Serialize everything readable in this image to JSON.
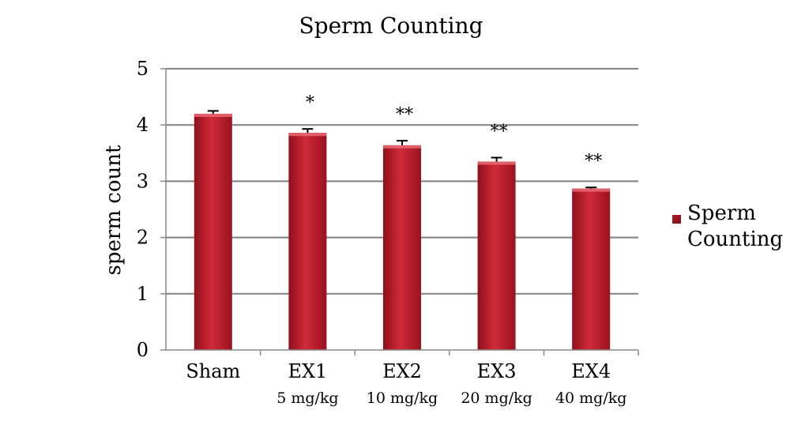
{
  "chart_data": {
    "type": "bar",
    "title": "Sperm Counting",
    "xlabel": "",
    "ylabel": "sperm count",
    "categories": [
      "Sham",
      "EX1",
      "EX2",
      "EX3",
      "EX4"
    ],
    "sublabels": [
      "",
      "5 mg/kg",
      "10 mg/kg",
      "20 mg/kg",
      "40 mg/kg"
    ],
    "series": [
      {
        "name": "Sperm Counting",
        "values": [
          4.2,
          3.86,
          3.64,
          3.35,
          2.87
        ],
        "errors": [
          0.05,
          0.07,
          0.08,
          0.07,
          0.02
        ],
        "color": "#c8202f"
      }
    ],
    "significance": [
      "",
      "*",
      "**",
      "**",
      "**"
    ],
    "yticks": [
      0,
      1,
      2,
      3,
      4,
      5
    ],
    "ylim": [
      0,
      5
    ],
    "grid": true,
    "legend_position": "right"
  }
}
